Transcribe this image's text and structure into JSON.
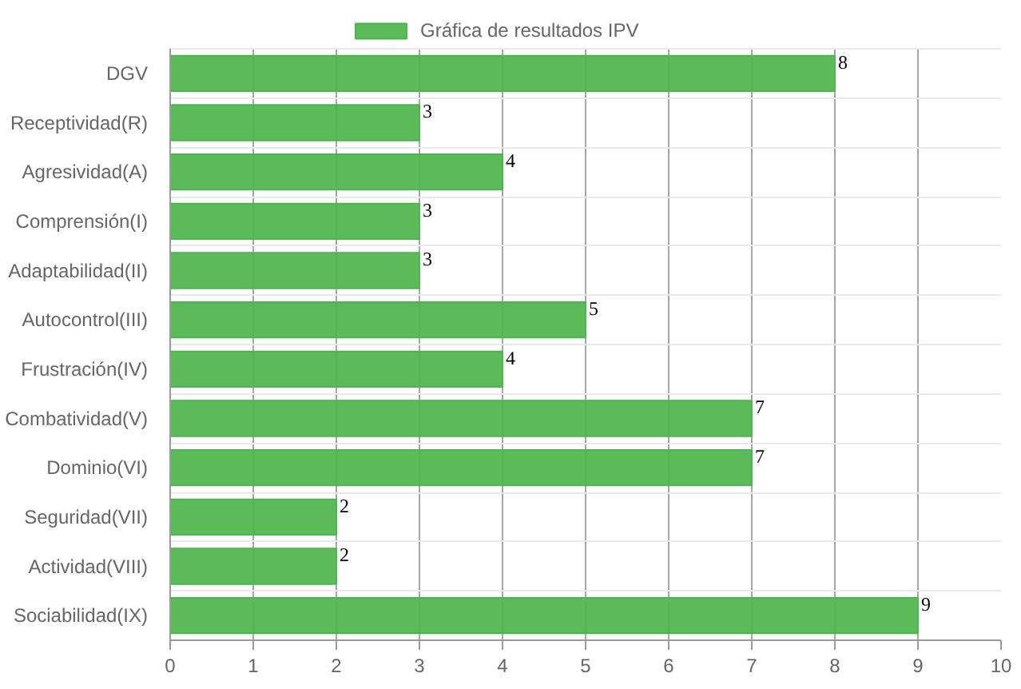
{
  "chart_data": {
    "type": "bar",
    "orientation": "horizontal",
    "categories": [
      "DGV",
      "Receptividad(R)",
      "Agresividad(A)",
      "Comprensión(I)",
      "Adaptabilidad(II)",
      "Autocontrol(III)",
      "Frustración(IV)",
      "Combatividad(V)",
      "Dominio(VI)",
      "Seguridad(VII)",
      "Actividad(VIII)",
      "Sociabilidad(IX)"
    ],
    "series": [
      {
        "name": "Gráfica de resultados IPV",
        "color": "#4db54d",
        "values": [
          8,
          3,
          4,
          3,
          3,
          5,
          4,
          7,
          7,
          2,
          2,
          9
        ]
      }
    ],
    "xlim": [
      0,
      10
    ],
    "xticks": [
      0,
      1,
      2,
      3,
      4,
      5,
      6,
      7,
      8,
      9,
      10
    ],
    "grid": true,
    "legend": "top",
    "data_labels": true
  }
}
